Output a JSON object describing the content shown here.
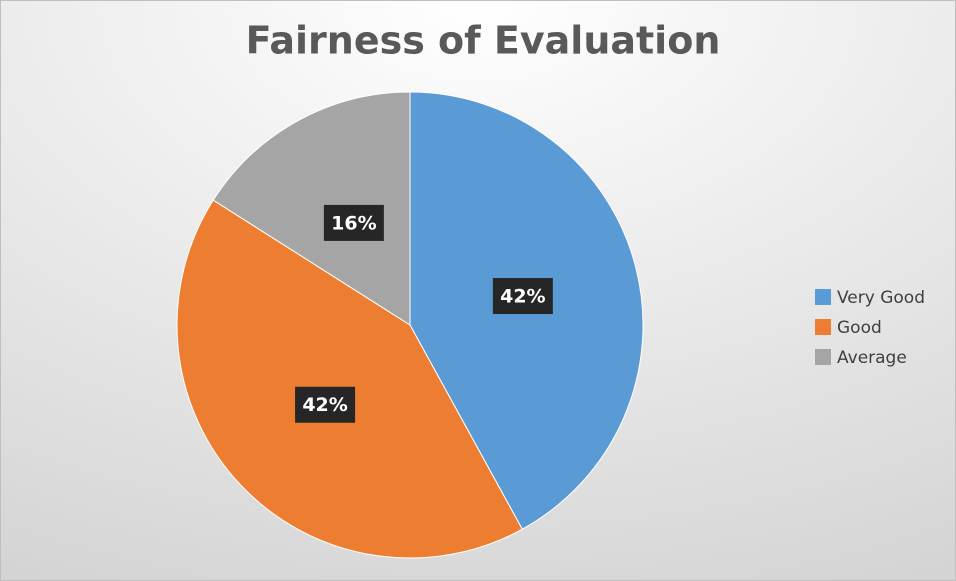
{
  "chart_data": {
    "type": "pie",
    "title": "Fairness of Evaluation",
    "categories": [
      "Very Good",
      "Good",
      "Average"
    ],
    "values": [
      42,
      42,
      16
    ],
    "value_labels": [
      "42%",
      "42%",
      "16%"
    ],
    "colors": [
      "#5b9bd5",
      "#ed7d31",
      "#a5a5a5"
    ],
    "legend": "right"
  }
}
